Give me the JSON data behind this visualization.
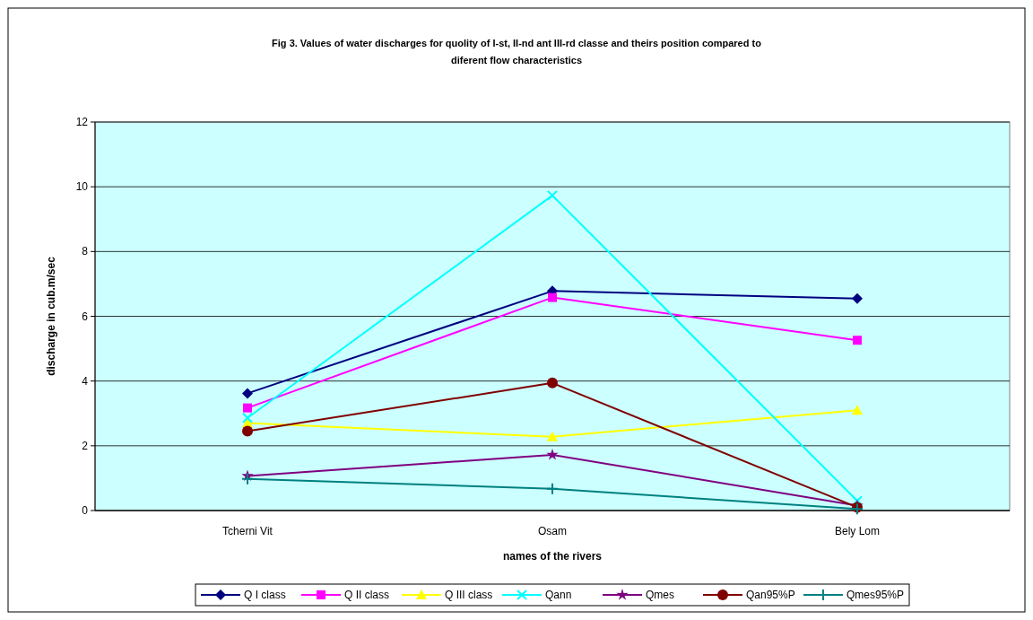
{
  "chart_data": {
    "type": "line",
    "title": "Fig 3. Values of water discharges for quolity of I-st, II-nd ant III-rd classe and theirs position compared to diferent flow characteristics",
    "xlabel": "names of the rivers",
    "ylabel": "discharge in cub.m/sec",
    "categories": [
      "Tcherni Vit",
      "Osam",
      "Bely Lom"
    ],
    "ylim": [
      0,
      12
    ],
    "yticks": [
      0,
      2,
      4,
      6,
      8,
      10,
      12
    ],
    "grid": "y",
    "legend": "bottom",
    "series": [
      {
        "name": "Q I class",
        "color": "#000080",
        "marker": "diamond",
        "values": [
          3.62,
          6.78,
          6.55
        ]
      },
      {
        "name": "Q II class",
        "color": "#ff00ff",
        "marker": "square",
        "values": [
          3.17,
          6.58,
          5.26
        ]
      },
      {
        "name": "Q III class",
        "color": "#ffff00",
        "marker": "triangle",
        "values": [
          2.7,
          2.28,
          3.1
        ]
      },
      {
        "name": "Qann",
        "color": "#00ffff",
        "marker": "cross",
        "values": [
          2.86,
          9.73,
          0.3
        ]
      },
      {
        "name": "Qmes",
        "color": "#800080",
        "marker": "star",
        "values": [
          1.07,
          1.72,
          0.15
        ]
      },
      {
        "name": "Qan95%P",
        "color": "#800000",
        "marker": "circle",
        "values": [
          2.45,
          3.94,
          0.1
        ]
      },
      {
        "name": "Qmes95%P",
        "color": "#008080",
        "marker": "plus",
        "values": [
          0.98,
          0.67,
          0.05
        ]
      }
    ]
  }
}
